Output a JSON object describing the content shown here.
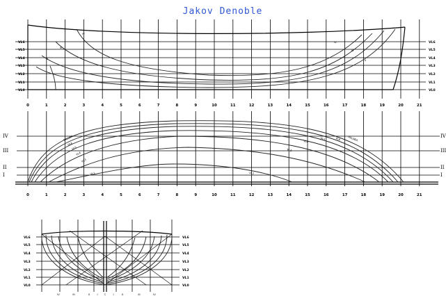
{
  "title": "Jakov Denoble",
  "waterlines": [
    "VL6",
    "VL5",
    "VL4",
    "VL3",
    "VL2",
    "VL1",
    "VL0"
  ],
  "stations": [
    "0",
    "1",
    "2",
    "3",
    "4",
    "5",
    "6",
    "7",
    "8",
    "9",
    "10",
    "11",
    "12",
    "13",
    "14",
    "15",
    "16",
    "17",
    "18",
    "19",
    "20",
    "21"
  ],
  "buttocks": [
    "IV",
    "III",
    "II",
    "I"
  ],
  "profile_section_labels": [
    "IV",
    "III",
    "II",
    "I"
  ],
  "plan_curve_labels": [
    "PALUBA",
    "VL6",
    "VL5",
    "VL4",
    "VL3",
    "VL2",
    "VL1"
  ],
  "body_plan_bottom_labels": [
    "IV",
    "III",
    "II",
    "I",
    "C",
    "I",
    "II",
    "III",
    "IV"
  ]
}
